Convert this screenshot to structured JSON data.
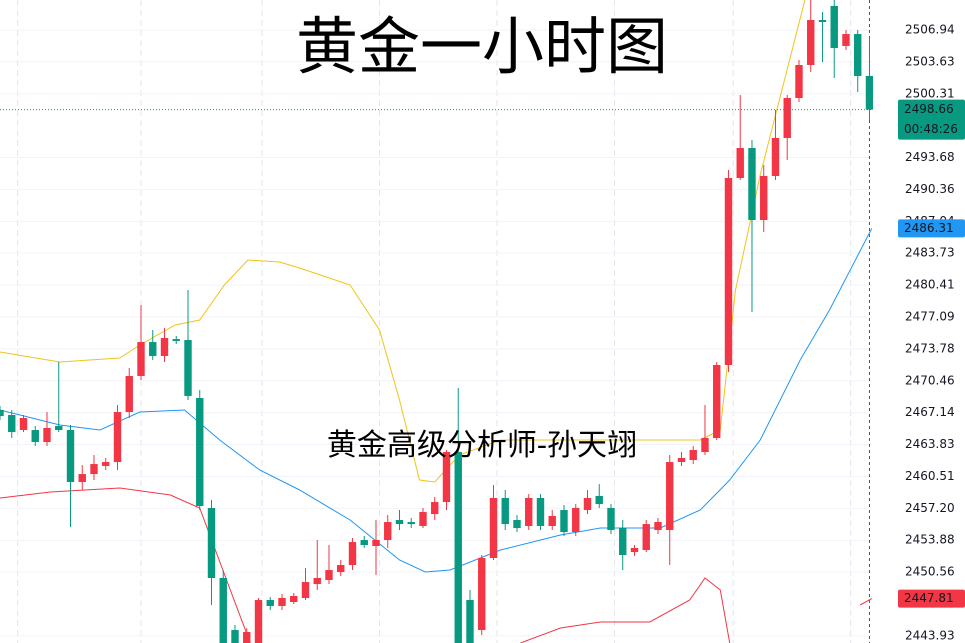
{
  "chart_data": {
    "type": "candlestick",
    "title": "黄金一小时图",
    "watermark": "黄金高级分析师-孙天翊",
    "up_color": "#f23645",
    "down_color": "#089981",
    "xlim": [
      0,
      74.3
    ],
    "ylim": [
      2443.19,
      2510.06
    ],
    "yticks": [
      2506.94,
      2503.63,
      2500.31,
      2493.68,
      2490.36,
      2487.04,
      2483.73,
      2480.41,
      2477.09,
      2473.78,
      2470.46,
      2467.14,
      2463.83,
      2460.51,
      {
        "value": 2457.2,
        "label": "2457.20"
      },
      2453.88,
      2450.56,
      2443.93
    ],
    "xgrid": [
      1.5,
      12,
      22.3,
      32.3,
      42.3,
      52.3,
      62.4,
      72.4
    ],
    "ohlc": [
      [
        2467.42,
        2467.84,
        2466.38,
        2466.8
      ],
      [
        2466.9,
        2467.42,
        2464.51,
        2465.13
      ],
      [
        2465.34,
        2466.9,
        2465.13,
        2466.59
      ],
      [
        2465.34,
        2465.76,
        2463.68,
        2464.09
      ],
      [
        2464.09,
        2467.21,
        2463.68,
        2465.55
      ],
      [
        2465.76,
        2472.41,
        2465.13,
        2465.34
      ],
      [
        2465.34,
        2465.86,
        2455.25,
        2459.93
      ],
      [
        2459.93,
        2461.7,
        2459.1,
        2460.76
      ],
      [
        2460.76,
        2462.74,
        2460.14,
        2461.8
      ],
      [
        2461.6,
        2462.43,
        2461.18,
        2462.01
      ],
      [
        2462.01,
        2467.94,
        2461.18,
        2467.21
      ],
      [
        2467.21,
        2471.79,
        2466.59,
        2470.96
      ],
      [
        2470.96,
        2478.34,
        2470.54,
        2474.49
      ],
      [
        2474.49,
        2475.74,
        2472.62,
        2473.04
      ],
      [
        2473.04,
        2475.95,
        2472.41,
        2474.91
      ],
      [
        2474.8,
        2475.12,
        2474.28,
        2474.6
      ],
      [
        2474.7,
        2479.9,
        2468.46,
        2468.88
      ],
      [
        2468.67,
        2469.5,
        2457.02,
        2457.44
      ],
      [
        2457.23,
        2458.06,
        2447.14,
        2449.95
      ],
      [
        2449.95,
        2450.78,
        2443.19,
        2443.19
      ],
      [
        2444.54,
        2445.06,
        2443.19,
        2443.19
      ],
      [
        2443.19,
        2444.74,
        2443.19,
        2444.33
      ],
      [
        2443.19,
        2447.87,
        2443.19,
        2447.66
      ],
      [
        2447.66,
        2447.97,
        2446.62,
        2447.04
      ],
      [
        2447.04,
        2448.28,
        2446.62,
        2447.87
      ],
      [
        2447.45,
        2448.39,
        2447.24,
        2448.08
      ],
      [
        2447.87,
        2450.99,
        2447.66,
        2449.53
      ],
      [
        2449.32,
        2453.9,
        2448.7,
        2449.95
      ],
      [
        2449.74,
        2453.38,
        2449.32,
        2450.78
      ],
      [
        2450.57,
        2451.82,
        2450.16,
        2451.3
      ],
      [
        2451.3,
        2454.11,
        2450.78,
        2453.69
      ],
      [
        2453.9,
        2454.32,
        2453.07,
        2453.38
      ],
      [
        2453.28,
        2455.98,
        2450.26,
        2453.9
      ],
      [
        2453.9,
        2456.5,
        2453.07,
        2455.77
      ],
      [
        2455.98,
        2457.02,
        2454.94,
        2455.56
      ],
      [
        2455.77,
        2456.19,
        2455.15,
        2455.56
      ],
      [
        2455.36,
        2457.23,
        2455.15,
        2456.81
      ],
      [
        2456.6,
        2458.37,
        2455.98,
        2457.85
      ],
      [
        2457.85,
        2463.26,
        2457.02,
        2463.05
      ],
      [
        2463.05,
        2469.71,
        2443.19,
        2443.19
      ],
      [
        2447.66,
        2448.7,
        2443.19,
        2443.19
      ],
      [
        2444.54,
        2452.34,
        2444.02,
        2452.03
      ],
      [
        2452.03,
        2459.62,
        2451.82,
        2458.27
      ],
      [
        2458.27,
        2459.1,
        2454.94,
        2455.56
      ],
      [
        2455.98,
        2456.5,
        2454.73,
        2455.15
      ],
      [
        2455.36,
        2458.68,
        2454.94,
        2458.27
      ],
      [
        2458.27,
        2458.68,
        2454.94,
        2455.36
      ],
      [
        2455.36,
        2457.02,
        2454.94,
        2456.4
      ],
      [
        2457.02,
        2457.54,
        2454.32,
        2454.73
      ],
      [
        2454.73,
        2457.64,
        2454.32,
        2457.23
      ],
      [
        2457.02,
        2459.1,
        2456.6,
        2458.27
      ],
      [
        2458.48,
        2459.72,
        2457.23,
        2457.64
      ],
      [
        2457.23,
        2457.64,
        2454.52,
        2454.94
      ],
      [
        2455.15,
        2455.98,
        2450.78,
        2452.34
      ],
      [
        2452.65,
        2453.38,
        2452.24,
        2453.07
      ],
      [
        2452.86,
        2455.98,
        2452.65,
        2455.56
      ],
      [
        2454.94,
        2456.19,
        2454.52,
        2455.77
      ],
      [
        2454.94,
        2462.74,
        2451.3,
        2462.01
      ],
      [
        2462.01,
        2463.05,
        2461.6,
        2462.43
      ],
      [
        2462.22,
        2463.68,
        2461.8,
        2463.26
      ],
      [
        2463.05,
        2467.94,
        2462.74,
        2464.51
      ],
      [
        2464.51,
        2472.41,
        2464.3,
        2472.1
      ],
      [
        2472.1,
        2492.38,
        2471.37,
        2491.55
      ],
      [
        2491.55,
        2500.18,
        2491.34,
        2494.67
      ],
      [
        2494.67,
        2495.5,
        2477.61,
        2487.18
      ],
      [
        2487.18,
        2492.9,
        2485.93,
        2491.76
      ],
      [
        2491.76,
        2498.62,
        2491.34,
        2495.71
      ],
      [
        2495.71,
        2500.18,
        2493.42,
        2499.87
      ],
      [
        2499.87,
        2503.82,
        2499.45,
        2503.3
      ],
      [
        2503.3,
        2510.06,
        2502.57,
        2507.98
      ],
      [
        2507.98,
        2508.81,
        2503.61,
        2507.77
      ],
      [
        2509.44,
        2510.06,
        2501.95,
        2505.07
      ],
      [
        2505.28,
        2506.94,
        2504.86,
        2506.52
      ],
      [
        2506.52,
        2506.94,
        2500.49,
        2502.16
      ],
      [
        2502.16,
        2506.11,
        2497.58,
        2498.66
      ]
    ],
    "last_price": {
      "value": 2498.66,
      "countdown": "00:48:26",
      "color": "#089981"
    },
    "series": [
      {
        "color": "#f0c419",
        "x": [
          0,
          5.1,
          10.2,
          11.9,
          14.9,
          17.0,
          19.1,
          21.1,
          23.8,
          25.5,
          29.8,
          32.3,
          34.0,
          35.7,
          37.0,
          39.1,
          42.6,
          51.1,
          59.6,
          61.3,
          62.6,
          64.7,
          67.2,
          68.5
        ],
        "values": [
          2473.45,
          2472.41,
          2472.83,
          2474.18,
          2476.26,
          2476.78,
          2480.42,
          2483.02,
          2482.81,
          2482.19,
          2480.42,
          2475.74,
          2468.46,
          2460.14,
          2459.93,
          2462.74,
          2464.3,
          2464.3,
          2464.3,
          2465.34,
          2479.9,
          2491.86,
          2503.82,
          2510.06
        ]
      },
      {
        "color": "#2196f3",
        "x": [
          0,
          5.1,
          8.5,
          11.9,
          15.7,
          18.7,
          22.1,
          25.5,
          29.8,
          34.0,
          36.2,
          38.3,
          42.6,
          47.7,
          51.1,
          56.2,
          59.6,
          62.1,
          64.7,
          68.1,
          70.6,
          74.2
        ],
        "values": [
          2467.42,
          2465.86,
          2465.34,
          2467.21,
          2467.42,
          2464.3,
          2461.18,
          2459.1,
          2455.98,
          2451.82,
          2450.57,
          2450.78,
          2452.86,
          2454.42,
          2455.15,
          2455.15,
          2457.02,
          2460.14,
          2464.3,
          2472.62,
          2477.82,
          2486.31
        ]
      },
      {
        "color": "#f23645",
        "x": [
          0,
          4.3,
          10.2,
          14.5,
          17.0,
          19.6,
          21.3,
          null,
          44.3,
          47.7,
          51.1,
          55.3,
          58.7,
          60.0,
          61.3,
          62.1,
          null,
          73.2,
          74.2
        ],
        "values": [
          2458.27,
          2458.89,
          2459.31,
          2458.58,
          2457.23,
          2448.7,
          2443.19,
          null,
          2443.19,
          2444.75,
          2445.37,
          2445.37,
          2447.66,
          2449.95,
          2448.7,
          2443.19,
          null,
          2447.14,
          2447.81
        ]
      }
    ]
  }
}
